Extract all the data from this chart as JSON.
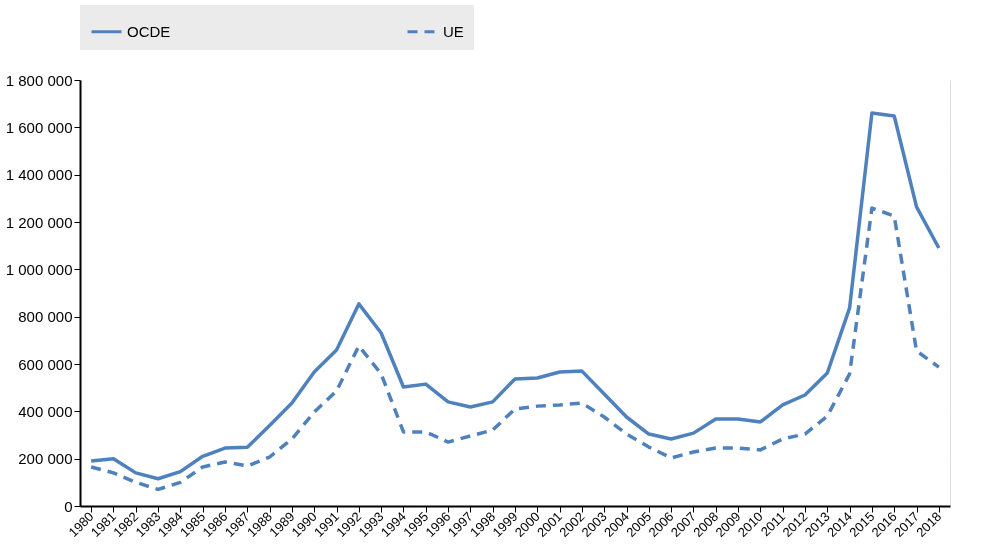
{
  "chart_data": {
    "type": "line",
    "categories": [
      "1980",
      "1981",
      "1982",
      "1983",
      "1984",
      "1985",
      "1986",
      "1987",
      "1988",
      "1989",
      "1990",
      "1991",
      "1992",
      "1993",
      "1994",
      "1995",
      "1996",
      "1997",
      "1998",
      "1999",
      "2000",
      "2001",
      "2002",
      "2003",
      "2004",
      "2005",
      "2006",
      "2007",
      "2008",
      "2009",
      "2010",
      "2011",
      "2012",
      "2013",
      "2014",
      "2015",
      "2016",
      "2017",
      "2018"
    ],
    "series": [
      {
        "name": "OCDE",
        "color": "#4f81bd",
        "line_style": "solid",
        "values": [
          190000,
          200000,
          140000,
          115000,
          145000,
          210000,
          245000,
          248000,
          340000,
          435000,
          566000,
          659000,
          854000,
          731000,
          503000,
          515000,
          440000,
          418000,
          440000,
          537000,
          541000,
          566000,
          570000,
          473000,
          376000,
          304000,
          283000,
          308000,
          368000,
          368000,
          355000,
          427000,
          469000,
          562000,
          837000,
          1661000,
          1648000,
          1264000,
          1090000
        ]
      },
      {
        "name": "UE",
        "color": "#4f81bd",
        "line_style": "dashed",
        "values": [
          165000,
          140000,
          100000,
          70000,
          100000,
          165000,
          186000,
          169000,
          207000,
          283000,
          397000,
          486000,
          676000,
          558000,
          313000,
          313000,
          270000,
          296000,
          321000,
          410000,
          422000,
          427000,
          435000,
          376000,
          304000,
          249000,
          203000,
          228000,
          245000,
          245000,
          237000,
          283000,
          304000,
          380000,
          558000,
          1259000,
          1225000,
          655000,
          587000
        ]
      }
    ],
    "ylim": [
      0,
      1800000
    ],
    "yticks": [
      {
        "value": 0,
        "label": "0"
      },
      {
        "value": 200000,
        "label": "200 000"
      },
      {
        "value": 400000,
        "label": "400 000"
      },
      {
        "value": 600000,
        "label": "600 000"
      },
      {
        "value": 800000,
        "label": "800 000"
      },
      {
        "value": 1000000,
        "label": "1 000 000"
      },
      {
        "value": 1200000,
        "label": "1 200 000"
      },
      {
        "value": 1400000,
        "label": "1 400 000"
      },
      {
        "value": 1600000,
        "label": "1 600 000"
      },
      {
        "value": 1800000,
        "label": "1 800 000"
      }
    ],
    "grid": true,
    "legend": "top",
    "marker": "none"
  }
}
